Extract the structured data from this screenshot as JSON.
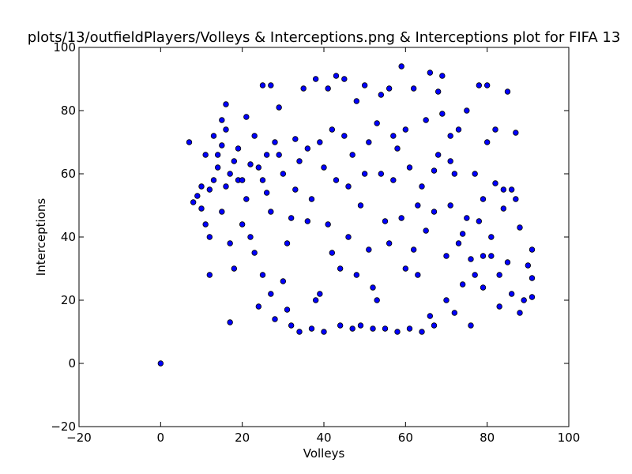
{
  "chart_data": {
    "type": "scatter",
    "title": "plots/13/outfieldPlayers/Volleys & Interceptions.png & Interceptions plot for FIFA 13",
    "xlabel": "Volleys",
    "ylabel": "Interceptions",
    "xlim": [
      -20,
      100
    ],
    "ylim": [
      -20,
      100
    ],
    "xticks": [
      "−20",
      "0",
      "20",
      "40",
      "60",
      "80",
      "100"
    ],
    "yticks": [
      "−20",
      "0",
      "20",
      "40",
      "60",
      "80",
      "100"
    ],
    "grid": false,
    "marker_color": "#0000ff",
    "marker_edge_color": "#000000",
    "series": [
      {
        "points": [
          [
            0,
            0
          ],
          [
            7,
            70
          ],
          [
            8,
            51
          ],
          [
            9,
            53
          ],
          [
            10,
            56
          ],
          [
            10,
            49
          ],
          [
            11,
            66
          ],
          [
            11,
            44
          ],
          [
            12,
            28
          ],
          [
            12,
            40
          ],
          [
            13,
            58
          ],
          [
            14,
            62
          ],
          [
            15,
            77
          ],
          [
            15,
            69
          ],
          [
            16,
            82
          ],
          [
            16,
            56
          ],
          [
            17,
            13
          ],
          [
            17,
            38
          ],
          [
            18,
            30
          ],
          [
            19,
            58
          ],
          [
            20,
            44
          ],
          [
            21,
            78
          ],
          [
            22,
            63
          ],
          [
            22,
            40
          ],
          [
            23,
            35
          ],
          [
            24,
            18
          ],
          [
            25,
            88
          ],
          [
            25,
            28
          ],
          [
            26,
            66
          ],
          [
            27,
            88
          ],
          [
            27,
            22
          ],
          [
            28,
            70
          ],
          [
            28,
            14
          ],
          [
            29,
            81
          ],
          [
            30,
            26
          ],
          [
            31,
            17
          ],
          [
            32,
            12
          ],
          [
            33,
            71
          ],
          [
            34,
            10
          ],
          [
            35,
            87
          ],
          [
            36,
            68
          ],
          [
            37,
            11
          ],
          [
            38,
            90
          ],
          [
            39,
            22
          ],
          [
            40,
            10
          ],
          [
            41,
            87
          ],
          [
            42,
            74
          ],
          [
            43,
            91
          ],
          [
            44,
            12
          ],
          [
            45,
            90
          ],
          [
            46,
            56
          ],
          [
            47,
            11
          ],
          [
            48,
            83
          ],
          [
            49,
            12
          ],
          [
            50,
            88
          ],
          [
            51,
            36
          ],
          [
            52,
            11
          ],
          [
            53,
            76
          ],
          [
            54,
            85
          ],
          [
            55,
            11
          ],
          [
            56,
            87
          ],
          [
            57,
            58
          ],
          [
            58,
            10
          ],
          [
            59,
            94
          ],
          [
            60,
            74
          ],
          [
            61,
            11
          ],
          [
            62,
            87
          ],
          [
            63,
            28
          ],
          [
            64,
            10
          ],
          [
            65,
            77
          ],
          [
            66,
            92
          ],
          [
            67,
            61
          ],
          [
            67,
            12
          ],
          [
            68,
            86
          ],
          [
            69,
            91
          ],
          [
            70,
            20
          ],
          [
            71,
            72
          ],
          [
            72,
            16
          ],
          [
            73,
            74
          ],
          [
            74,
            41
          ],
          [
            75,
            80
          ],
          [
            76,
            12
          ],
          [
            77,
            60
          ],
          [
            78,
            88
          ],
          [
            79,
            24
          ],
          [
            80,
            88
          ],
          [
            81,
            34
          ],
          [
            82,
            74
          ],
          [
            83,
            18
          ],
          [
            84,
            55
          ],
          [
            85,
            86
          ],
          [
            86,
            22
          ],
          [
            87,
            73
          ],
          [
            87,
            52
          ],
          [
            88,
            16
          ],
          [
            88,
            43
          ],
          [
            89,
            20
          ],
          [
            90,
            31
          ],
          [
            91,
            36
          ],
          [
            91,
            27
          ],
          [
            91,
            21
          ],
          [
            86,
            55
          ],
          [
            84,
            49
          ],
          [
            82,
            57
          ],
          [
            80,
            70
          ],
          [
            79,
            52
          ],
          [
            78,
            45
          ],
          [
            76,
            33
          ],
          [
            74,
            25
          ],
          [
            71,
            64
          ],
          [
            69,
            79
          ],
          [
            66,
            15
          ],
          [
            63,
            50
          ],
          [
            60,
            30
          ],
          [
            58,
            68
          ],
          [
            55,
            45
          ],
          [
            53,
            20
          ],
          [
            50,
            60
          ],
          [
            48,
            28
          ],
          [
            45,
            72
          ],
          [
            42,
            35
          ],
          [
            40,
            62
          ],
          [
            38,
            20
          ],
          [
            36,
            45
          ],
          [
            33,
            55
          ],
          [
            31,
            38
          ],
          [
            29,
            66
          ],
          [
            27,
            48
          ],
          [
            25,
            58
          ],
          [
            23,
            72
          ],
          [
            21,
            52
          ],
          [
            19,
            68
          ],
          [
            17,
            60
          ],
          [
            15,
            48
          ],
          [
            13,
            72
          ],
          [
            12,
            55
          ],
          [
            14,
            66
          ],
          [
            16,
            74
          ],
          [
            18,
            64
          ],
          [
            20,
            58
          ],
          [
            24,
            62
          ],
          [
            26,
            54
          ],
          [
            30,
            60
          ],
          [
            32,
            46
          ],
          [
            34,
            64
          ],
          [
            37,
            52
          ],
          [
            39,
            70
          ],
          [
            41,
            44
          ],
          [
            43,
            58
          ],
          [
            44,
            30
          ],
          [
            46,
            40
          ],
          [
            47,
            66
          ],
          [
            49,
            50
          ],
          [
            51,
            70
          ],
          [
            52,
            24
          ],
          [
            54,
            60
          ],
          [
            56,
            38
          ],
          [
            57,
            72
          ],
          [
            59,
            46
          ],
          [
            61,
            62
          ],
          [
            62,
            36
          ],
          [
            64,
            56
          ],
          [
            65,
            42
          ],
          [
            67,
            48
          ],
          [
            68,
            66
          ],
          [
            70,
            34
          ],
          [
            71,
            50
          ],
          [
            72,
            60
          ],
          [
            73,
            38
          ],
          [
            75,
            46
          ],
          [
            77,
            28
          ],
          [
            79,
            34
          ],
          [
            81,
            40
          ],
          [
            83,
            28
          ],
          [
            85,
            32
          ]
        ]
      }
    ]
  }
}
